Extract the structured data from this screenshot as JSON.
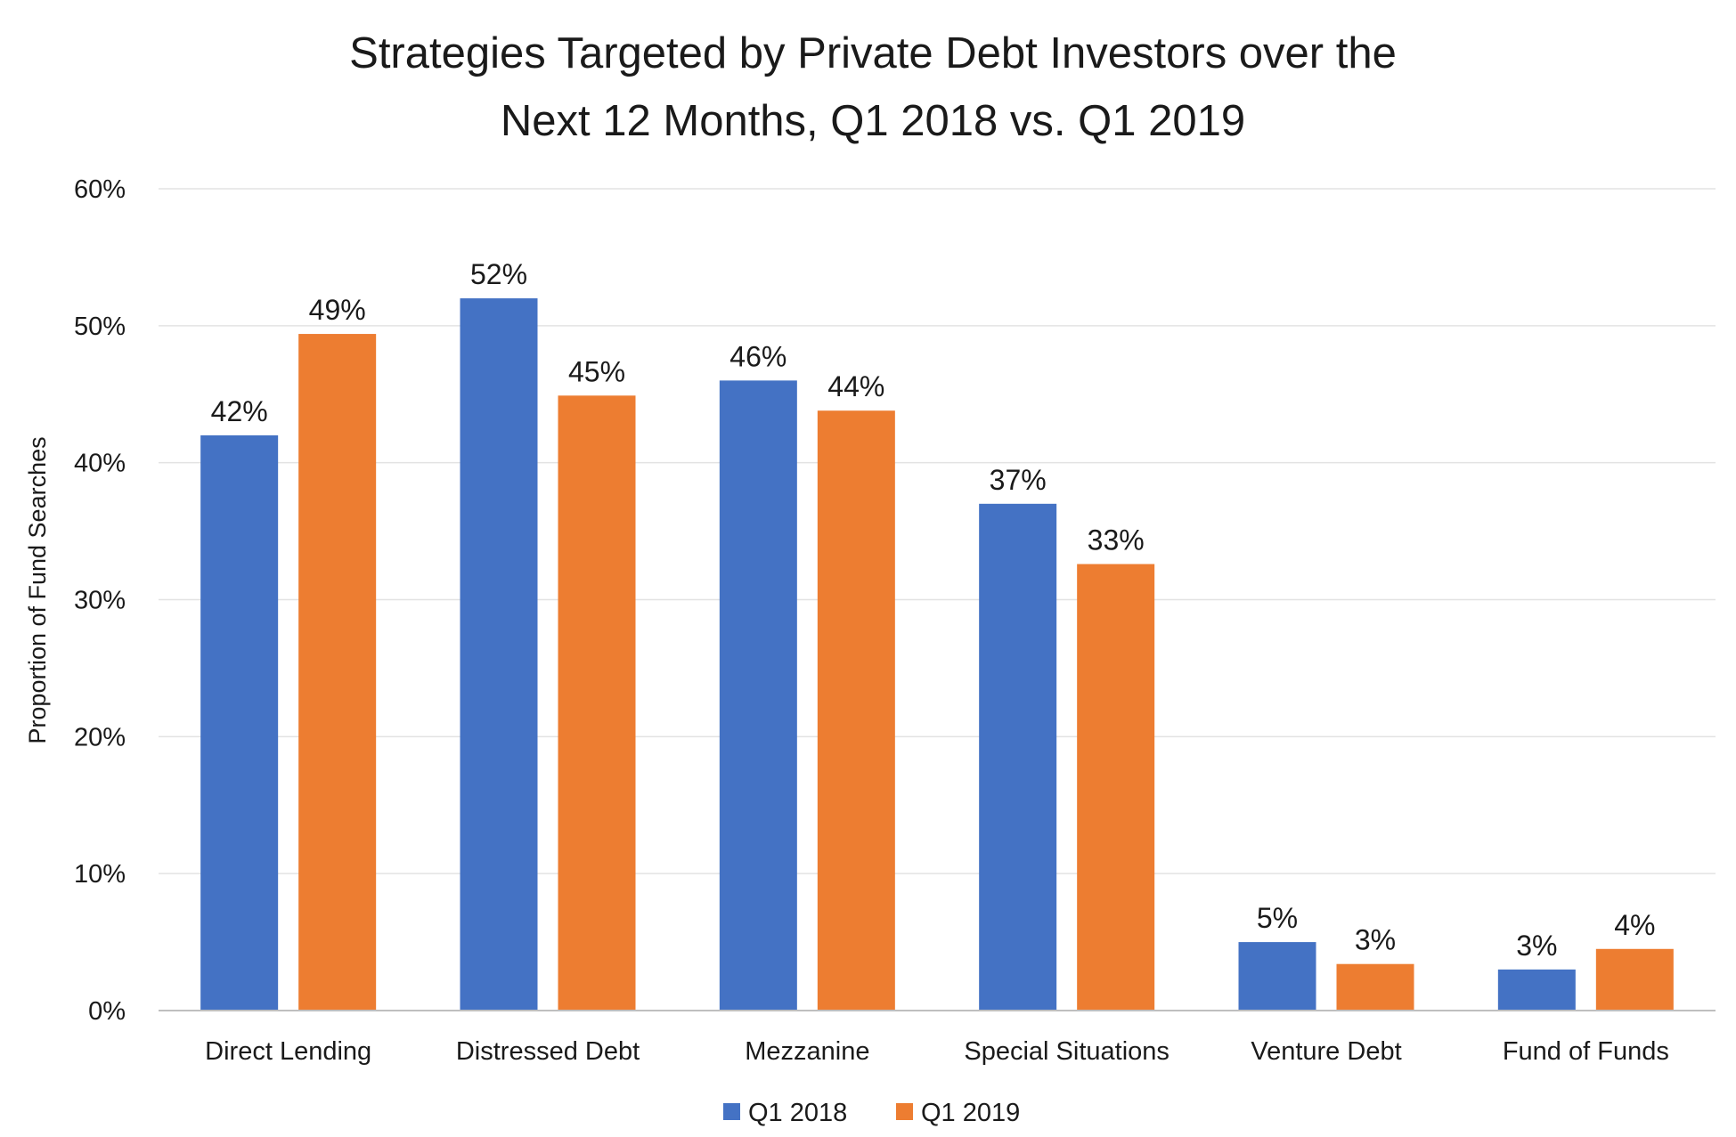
{
  "chart_data": {
    "type": "bar",
    "title_lines": [
      "Strategies Targeted by Private Debt Investors over the",
      "Next 12 Months, Q1 2018 vs. Q1 2019"
    ],
    "xlabel": "",
    "ylabel": "Proportion of Fund Searches",
    "ylim": [
      0,
      60
    ],
    "yticks": [
      "0%",
      "10%",
      "20%",
      "30%",
      "40%",
      "50%",
      "60%"
    ],
    "ytick_values": [
      0,
      10,
      20,
      30,
      40,
      50,
      60
    ],
    "grid": true,
    "legend_position": "bottom",
    "categories": [
      "Direct Lending",
      "Distressed Debt",
      "Mezzanine",
      "Special Situations",
      "Venture Debt",
      "Fund of Funds"
    ],
    "series": [
      {
        "name": "Q1 2018",
        "color": "#4472C4",
        "values": [
          42,
          52,
          46,
          37,
          5,
          3
        ],
        "labels": [
          "42%",
          "52%",
          "46%",
          "37%",
          "5%",
          "3%"
        ]
      },
      {
        "name": "Q1 2019",
        "color": "#ED7D31",
        "values": [
          49.4,
          44.9,
          43.8,
          32.6,
          3.4,
          4.5
        ],
        "labels": [
          "49%",
          "45%",
          "44%",
          "33%",
          "3%",
          "4%"
        ]
      }
    ]
  }
}
